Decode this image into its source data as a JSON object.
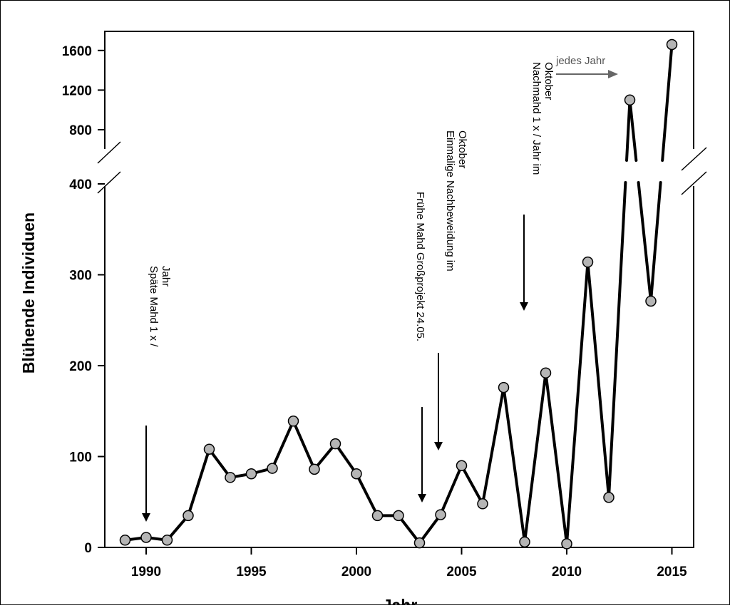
{
  "chart_data": {
    "type": "line",
    "title": "",
    "xlabel": "Jahr",
    "ylabel": "Blühende Individuen",
    "x_ticks": [
      "1990",
      "1995",
      "2000",
      "2005",
      "2010",
      "2015"
    ],
    "y_ticks_lower": [
      "0",
      "100",
      "200",
      "300",
      "400"
    ],
    "y_ticks_upper": [
      "800",
      "1200",
      "1600"
    ],
    "xlim": [
      1987.5,
      2016
    ],
    "ylim_lower": [
      0,
      400
    ],
    "ylim_upper": [
      400,
      1750
    ],
    "axis_break": "between 400 and 800",
    "grid": false,
    "series": [
      {
        "x": [
          1989,
          1990,
          1991,
          1992,
          1993,
          1994,
          1995,
          1996,
          1997,
          1998,
          1999,
          2000,
          2001,
          2002,
          2003,
          2004,
          2005,
          2006,
          2007,
          2008,
          2009,
          2010,
          2011,
          2012,
          2013,
          2014,
          2015
        ],
        "values": [
          8,
          11,
          8,
          35,
          108,
          77,
          81,
          87,
          139,
          86,
          114,
          81,
          35,
          35,
          5,
          36,
          90,
          48,
          176,
          6,
          192,
          4,
          314,
          55,
          1100,
          271,
          1660
        ]
      }
    ],
    "annotations": [
      {
        "lines": [
          "Späte Mahd 1 x /",
          "Jahr"
        ],
        "x": 1990
      },
      {
        "lines": [
          "Frühe Mahd Großprojekt 24.05."
        ],
        "x": 2003
      },
      {
        "lines": [
          "Einmalige Nachbeweidung im",
          "Oktober"
        ],
        "x": 2004
      },
      {
        "lines": [
          "Nachmahd 1 x / Jahr im",
          "Oktober"
        ],
        "x": 2008
      },
      {
        "lines": [
          "jedes Jahr"
        ],
        "x": 2009
      }
    ],
    "colors": {
      "line": "#000000",
      "marker_fill": "#b5b5b5",
      "gray_arrow": "#666666"
    }
  }
}
